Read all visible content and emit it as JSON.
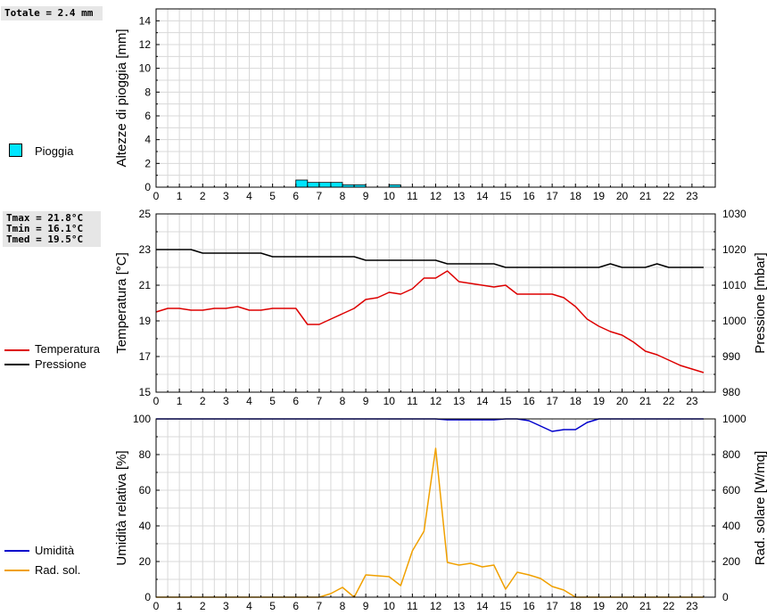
{
  "panels": {
    "rain": {
      "stat_total": "Totale = 2.4 mm",
      "legend_label": "Pioggia",
      "color": "#00e5ff"
    },
    "temp": {
      "stat_tmax": "Tmax = 21.8°C",
      "stat_tmin": "Tmin = 16.1°C",
      "stat_tmed": "Tmed = 19.5°C",
      "legend_temp": "Temperatura",
      "legend_press": "Pressione",
      "temp_color": "#dd0000",
      "press_color": "#000000"
    },
    "hum": {
      "legend_hum": "Umidità",
      "legend_rad": "Rad. sol.",
      "hum_color": "#0000cc",
      "rad_color": "#f0a000"
    }
  },
  "chart_data": [
    {
      "type": "bar",
      "ylabel": "Altezze di pioggia [mm]",
      "xlim": [
        0,
        24
      ],
      "ylim": [
        0,
        15
      ],
      "xticks": [
        "0",
        "1",
        "2",
        "3",
        "4",
        "5",
        "6",
        "7",
        "8",
        "9",
        "10",
        "11",
        "12",
        "13",
        "14",
        "15",
        "16",
        "17",
        "18",
        "19",
        "20",
        "21",
        "22",
        "23"
      ],
      "yticks": [
        "0",
        "2",
        "4",
        "6",
        "8",
        "10",
        "12",
        "14"
      ],
      "bar_width": 0.5,
      "series": [
        {
          "name": "Pioggia",
          "x": [
            6.0,
            6.5,
            7.0,
            7.5,
            8.0,
            8.5,
            10.0
          ],
          "values": [
            0.6,
            0.4,
            0.4,
            0.4,
            0.2,
            0.2,
            0.2
          ]
        }
      ]
    },
    {
      "type": "line",
      "ylabel": "Temperatura [°C]",
      "y2label": "Pressione [mbar]",
      "xlim": [
        0,
        24
      ],
      "ylim": [
        15,
        25
      ],
      "y2lim": [
        980,
        1030
      ],
      "xticks": [
        "0",
        "1",
        "2",
        "3",
        "4",
        "5",
        "6",
        "7",
        "8",
        "9",
        "10",
        "11",
        "12",
        "13",
        "14",
        "15",
        "16",
        "17",
        "18",
        "19",
        "20",
        "21",
        "22",
        "23"
      ],
      "yticks": [
        "15",
        "17",
        "19",
        "21",
        "23",
        "25"
      ],
      "y2ticks": [
        "980",
        "990",
        "1000",
        "1010",
        "1020",
        "1030"
      ],
      "series": [
        {
          "name": "Temperatura",
          "axis": "left",
          "x": [
            0,
            0.5,
            1,
            1.5,
            2,
            2.5,
            3,
            3.5,
            4,
            4.5,
            5,
            5.5,
            6,
            6.5,
            7,
            7.5,
            8,
            8.5,
            9,
            9.5,
            10,
            10.5,
            11,
            11.5,
            12,
            12.5,
            13,
            13.5,
            14,
            14.5,
            15,
            15.5,
            16,
            16.5,
            17,
            17.5,
            18,
            18.5,
            19,
            19.5,
            20,
            20.5,
            21,
            21.5,
            22,
            22.5,
            23,
            23.5
          ],
          "values": [
            19.5,
            19.7,
            19.7,
            19.6,
            19.6,
            19.7,
            19.7,
            19.8,
            19.6,
            19.6,
            19.7,
            19.7,
            19.7,
            18.8,
            18.8,
            19.1,
            19.4,
            19.7,
            20.2,
            20.3,
            20.6,
            20.5,
            20.8,
            21.4,
            21.4,
            21.8,
            21.2,
            21.1,
            21.0,
            20.9,
            21.0,
            20.5,
            20.5,
            20.5,
            20.5,
            20.3,
            19.8,
            19.1,
            18.7,
            18.4,
            18.2,
            17.8,
            17.3,
            17.1,
            16.8,
            16.5,
            16.3,
            16.1
          ]
        },
        {
          "name": "Pressione",
          "axis": "right",
          "x": [
            0,
            1,
            1.5,
            2,
            2.5,
            4.5,
            5,
            6,
            8.5,
            9,
            12,
            12.5,
            14.5,
            15,
            19,
            19.5,
            20,
            21,
            21.5,
            22,
            23.5
          ],
          "values": [
            1020,
            1020,
            1020,
            1019,
            1019,
            1019,
            1018,
            1018,
            1018,
            1017,
            1017,
            1016,
            1016,
            1015,
            1015,
            1016,
            1015,
            1015,
            1016,
            1015,
            1015
          ]
        }
      ]
    },
    {
      "type": "line",
      "ylabel": "Umidità relativa [%]",
      "y2label": "Rad. solare [W/mq]",
      "xlim": [
        0,
        24
      ],
      "ylim": [
        0,
        100
      ],
      "y2lim": [
        0,
        1000
      ],
      "xticks": [
        "0",
        "1",
        "2",
        "3",
        "4",
        "5",
        "6",
        "7",
        "8",
        "9",
        "10",
        "11",
        "12",
        "13",
        "14",
        "15",
        "16",
        "17",
        "18",
        "19",
        "20",
        "21",
        "22",
        "23"
      ],
      "yticks": [
        "0",
        "20",
        "40",
        "60",
        "80",
        "100"
      ],
      "y2ticks": [
        "0",
        "200",
        "400",
        "600",
        "800",
        "1000"
      ],
      "series": [
        {
          "name": "Umidità",
          "axis": "left",
          "x": [
            0,
            12,
            12.5,
            13,
            14,
            14.5,
            15,
            15.5,
            16,
            16.5,
            17,
            17.5,
            18,
            18.5,
            19,
            23.5
          ],
          "values": [
            100,
            100,
            99.5,
            99.5,
            99.5,
            99.5,
            100,
            100,
            99,
            96,
            93,
            94,
            94,
            98,
            100,
            100
          ]
        },
        {
          "name": "Rad. sol.",
          "axis": "right",
          "x": [
            0,
            0.5,
            1,
            1.5,
            2,
            2.5,
            3,
            3.5,
            4,
            4.5,
            5,
            5.5,
            6,
            6.5,
            7,
            7.5,
            8,
            8.5,
            9,
            9.5,
            10,
            10.5,
            11,
            11.5,
            12,
            12.5,
            13,
            13.5,
            14,
            14.5,
            15,
            15.5,
            16,
            16.5,
            17,
            17.5,
            18,
            18.5,
            19,
            19.5,
            20,
            20.5,
            21,
            21.5,
            22,
            22.5,
            23,
            23.5
          ],
          "values": [
            0,
            0,
            0,
            0,
            0,
            0,
            0,
            0,
            0,
            0,
            0,
            0,
            0,
            0,
            0,
            20,
            55,
            0,
            125,
            120,
            115,
            65,
            260,
            370,
            835,
            195,
            180,
            190,
            170,
            180,
            45,
            140,
            125,
            105,
            60,
            40,
            0,
            0,
            0,
            0,
            0,
            0,
            0,
            0,
            0,
            0,
            0,
            0
          ]
        }
      ]
    }
  ]
}
